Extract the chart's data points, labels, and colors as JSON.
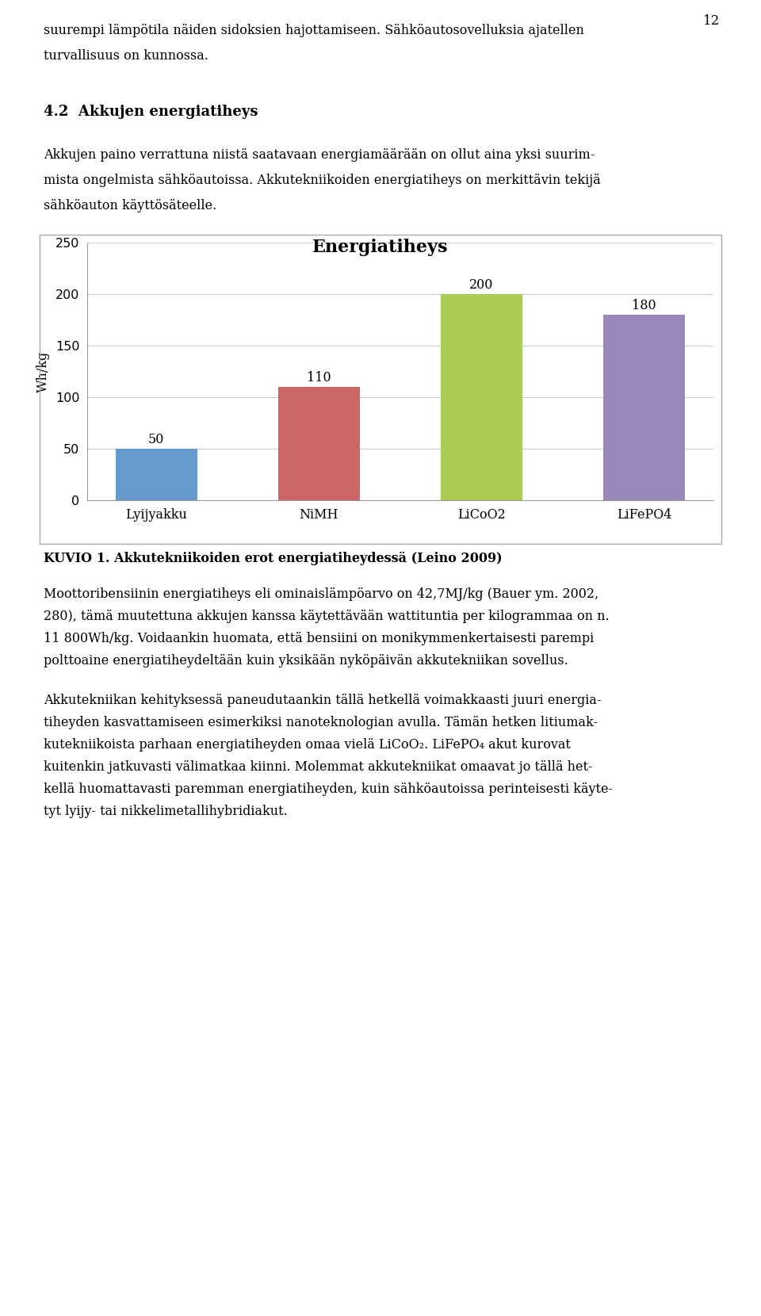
{
  "title": "Energiatiheys",
  "categories": [
    "Lyijyakku",
    "NiMH",
    "LiCoO2",
    "LiFePO4"
  ],
  "values": [
    50,
    110,
    200,
    180
  ],
  "bar_colors": [
    "#6699CC",
    "#CC6666",
    "#AACC55",
    "#9988BB"
  ],
  "ylabel": "Wh/kg",
  "ylim": [
    0,
    250
  ],
  "yticks": [
    0,
    50,
    100,
    150,
    200,
    250
  ],
  "background_color": "#ffffff",
  "chart_bg": "#ffffff",
  "page_number": "12",
  "text_top1": "suurempi lämpötila näiden sidoksien hajottamiseen. Sähköautosovelluksia ajatellen",
  "text_top2": "turvallisuus on kunnossa.",
  "heading": "4.2  Akkujen energiatiheys",
  "text_body1": "Akkujen paino verrattuna niistä saatavaan energiamäärään on ollut aina yksi suurim-",
  "text_body2": "mista ongelmista sähköautoissa. Akkutekniikoiden energiatiheys on merkittävin tekijä",
  "text_body3": "sähköauton käyttösäteelle.",
  "caption": "KUVIO 1. Akkutekniikoiden erot energiatiheydessä (Leino 2009)",
  "text_after1": "Moottoribensiinin energiatiheys eli ominaislämpöarvo on 42,7MJ/kg (Bauer ym. 2002,",
  "text_after2": "280), tämä muutettuna akkujen kanssa käytettävään wattituntia per kilogrammaa on n.",
  "text_after3": "11 800Wh/kg. Voidaankin huomata, että bensiini on monikymmenkertaisesti parempi",
  "text_after4": "polttoaine energiatiheydeltään kuin yksikään nyköpäivän akkutekniikan sovellus.",
  "text_para2_1": "Akkutekniikan kehityksessä paneudutaankin tällä hetkellä voimakkaasti juuri energia-",
  "text_para2_2": "tiheyden kasvattamiseen esimerkiksi nanoteknologian avulla. Tämän hetken litiumak-",
  "text_para2_3": "kutekniikoista parhaan energiatiheyden omaa vielä LiCoO₂. LiFePO₄ akut kurovat",
  "text_para2_4": "kuitenkin jatkuvasti välimatkaa kiinni. Molemmat akkutekniikat omaavat jo tällä het-",
  "text_para2_5": "kellä huomattavasti paremman energiatiheyden, kuin sähköautoissa perinteisesti käyte-",
  "text_para2_6": "tyt lyijy- tai nikkelimetallihybridiakut."
}
